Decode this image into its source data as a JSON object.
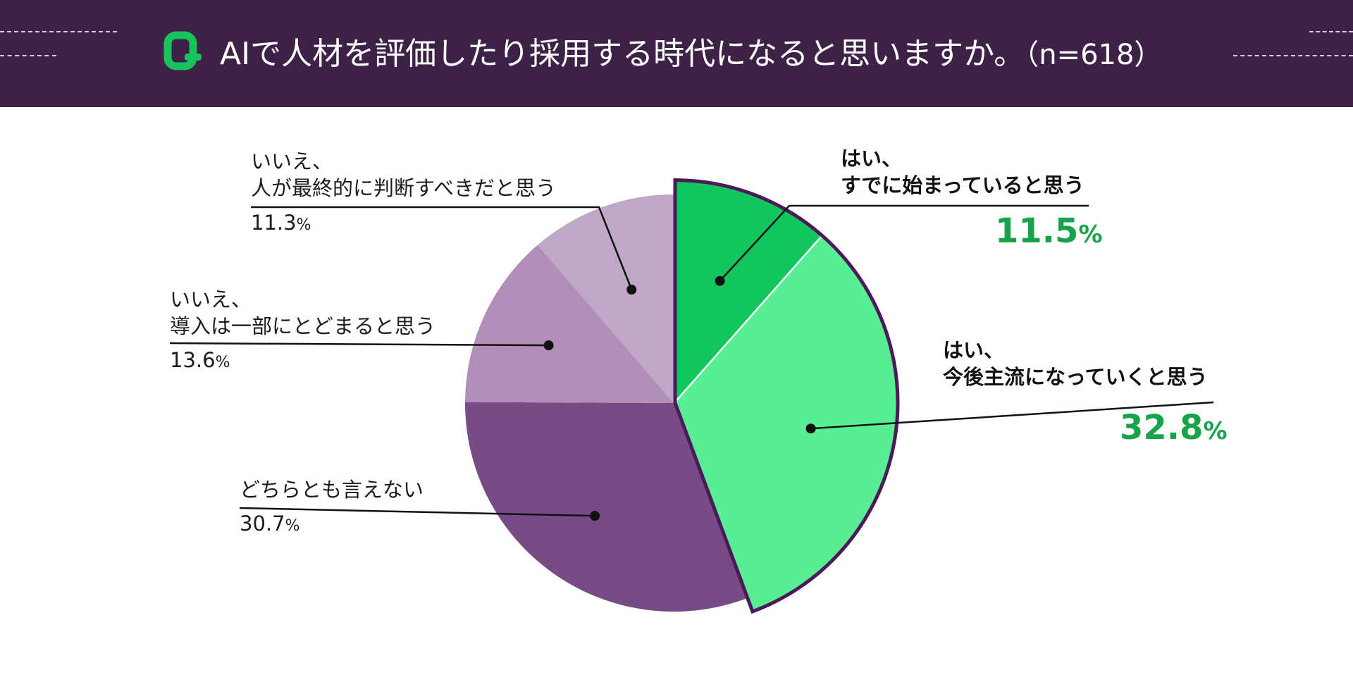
{
  "header": {
    "title": "AIで人材を評価したり採用する時代になると思いますか。",
    "sample": "（n=618）"
  },
  "colors": {
    "header_bg": "#3e2147",
    "accent_green": "#17a34a",
    "outline": "#4a1a5a"
  },
  "chart_data": {
    "type": "pie",
    "title": "AIで人材を評価したり採用する時代になると思いますか。（n=618）",
    "unit": "%",
    "slices": [
      {
        "line1": "はい、",
        "line2": "すでに始まっていると思う",
        "value": 11.5,
        "value_text": "11.5",
        "color": "#12c55c",
        "highlight": true
      },
      {
        "line1": "はい、",
        "line2": "今後主流になっていくと思う",
        "value": 32.8,
        "value_text": "32.8",
        "color": "#59ee93",
        "highlight": true
      },
      {
        "line1": "",
        "line2": "どちらとも言えない",
        "value": 30.7,
        "value_text": "30.7",
        "color": "#774b86",
        "highlight": false
      },
      {
        "line1": "いいえ、",
        "line2": "導入は一部にとどまると思う",
        "value": 13.6,
        "value_text": "13.6",
        "color": "#b18fb9",
        "highlight": false
      },
      {
        "line1": "いいえ、",
        "line2": "人が最終的に判断すべきだと思う",
        "value": 11.3,
        "value_text": "11.3",
        "color": "#bfa7c6",
        "highlight": false
      }
    ]
  }
}
